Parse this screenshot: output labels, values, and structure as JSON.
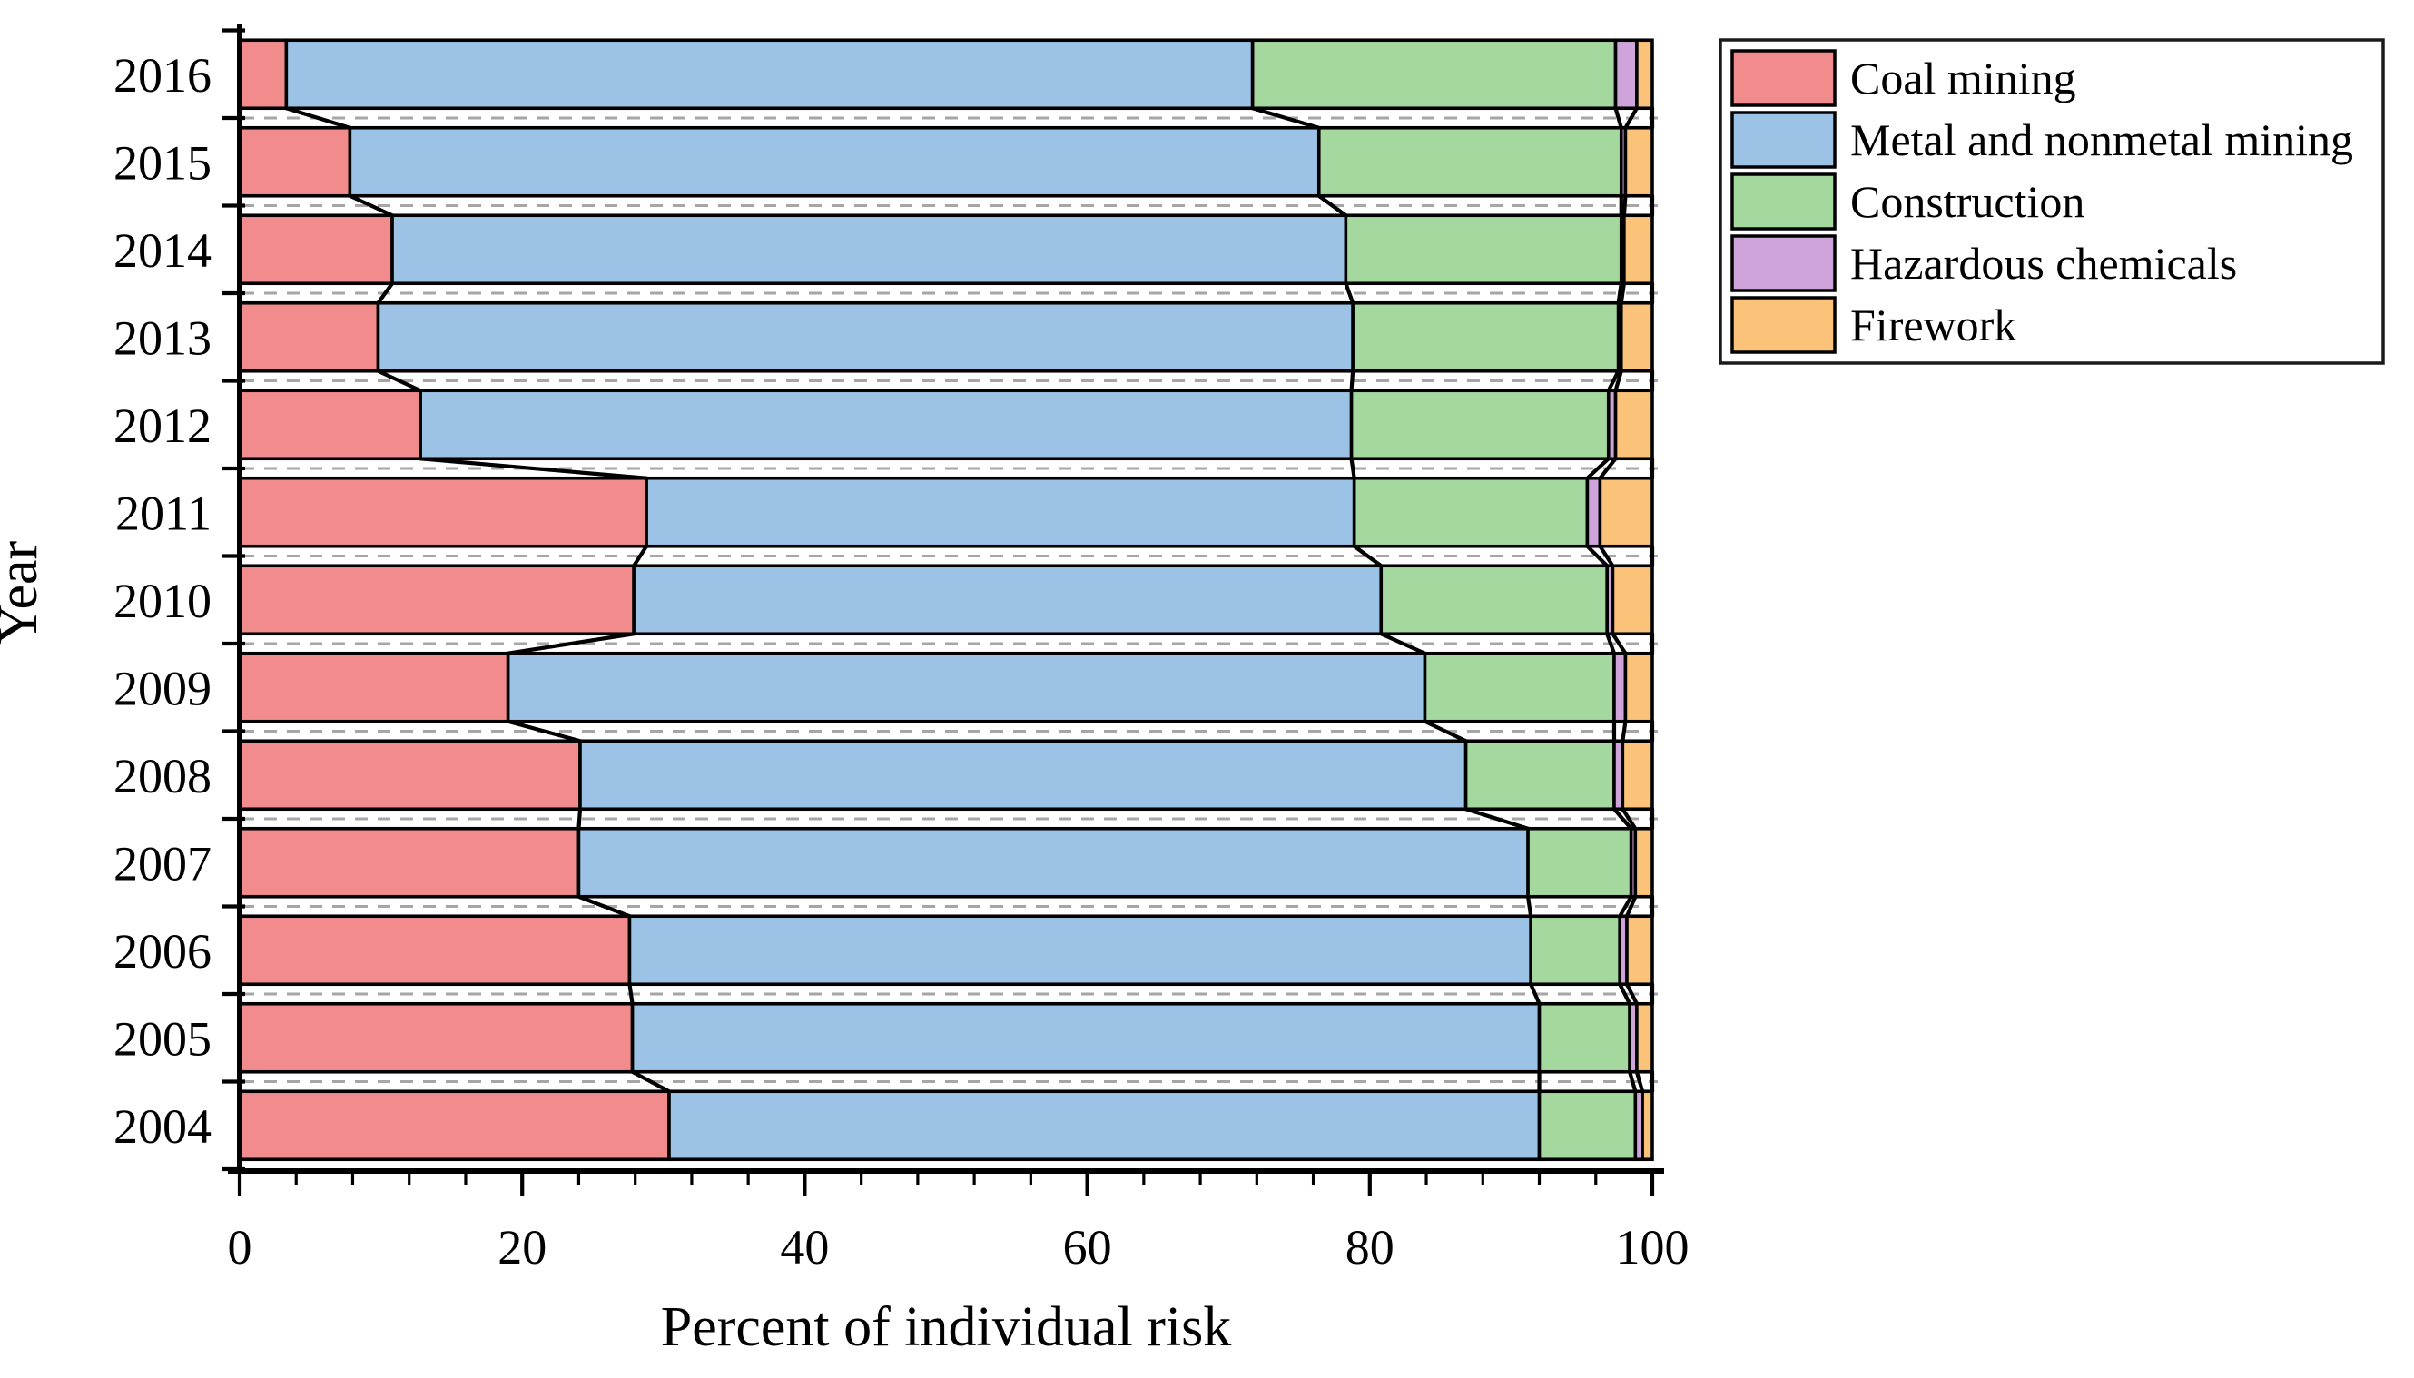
{
  "chart_data": {
    "type": "bar",
    "orientation": "horizontal-stacked",
    "title": "",
    "xlabel": "Percent of individual risk",
    "ylabel": "Year",
    "xlim": [
      0,
      100
    ],
    "x_major_ticks": [
      0,
      20,
      40,
      60,
      80,
      100
    ],
    "x_minor_step": 4,
    "grid": "dashed horizontal lines between category slots",
    "legend_position": "top-right-outside",
    "categories": [
      "2016",
      "2015",
      "2014",
      "2013",
      "2012",
      "2011",
      "2010",
      "2009",
      "2008",
      "2007",
      "2006",
      "2005",
      "2004"
    ],
    "series": [
      {
        "name": "Coal mining",
        "color": "#F28B8B",
        "values": [
          3.3,
          7.8,
          10.8,
          9.8,
          12.8,
          28.8,
          27.9,
          19.0,
          24.1,
          24.0,
          27.6,
          27.8,
          30.4
        ]
      },
      {
        "name": "Metal and nonmetal mining",
        "color": "#9CC3E6",
        "values": [
          68.4,
          68.6,
          67.5,
          69.0,
          65.9,
          50.1,
          52.9,
          64.9,
          62.7,
          67.2,
          63.8,
          64.2,
          61.6
        ]
      },
      {
        "name": "Construction",
        "color": "#A5D89E",
        "values": [
          25.7,
          21.4,
          19.5,
          18.8,
          18.2,
          16.5,
          16.0,
          13.4,
          10.5,
          7.3,
          6.3,
          6.4,
          6.8
        ]
      },
      {
        "name": "Hazardous chemicals",
        "color": "#CFA4DA",
        "values": [
          1.5,
          0.3,
          0.2,
          0.2,
          0.5,
          0.9,
          0.4,
          0.8,
          0.6,
          0.3,
          0.5,
          0.5,
          0.5
        ]
      },
      {
        "name": "Firework",
        "color": "#FBC379",
        "values": [
          1.1,
          1.9,
          2.0,
          2.2,
          2.6,
          3.7,
          2.8,
          1.9,
          2.1,
          1.2,
          1.8,
          1.1,
          0.7
        ]
      }
    ],
    "colors": {
      "bar_outline": "#000000",
      "axis": "#000000",
      "gridline": "#A6A6A6",
      "legend_border": "#1a1a1a"
    }
  }
}
